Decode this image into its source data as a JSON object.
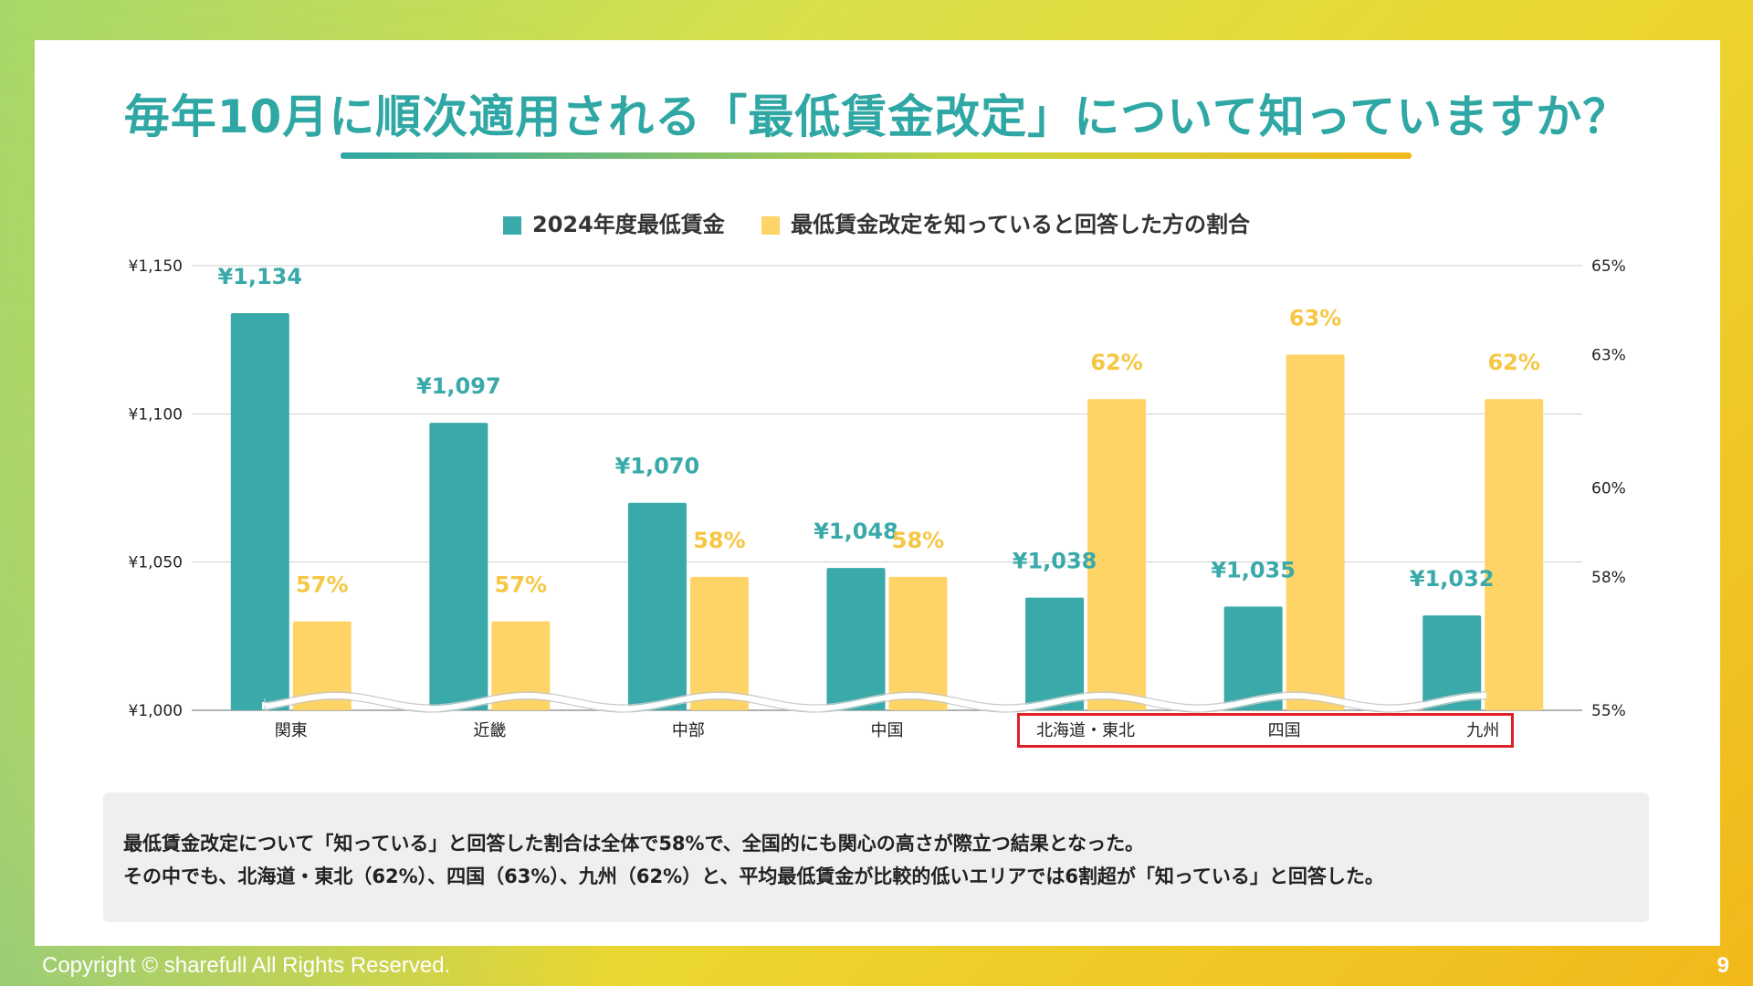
{
  "title": "毎年10月に順次適用される「最低賃金改定」について知っていますか？",
  "chart_data": {
    "type": "bar",
    "legend": [
      {
        "name": "2024年度最低賃金",
        "color": "#3aa9a9"
      },
      {
        "name": "最低賃金改定を知っていると回答した方の割合",
        "color": "#ffd466"
      }
    ],
    "categories": [
      "関東",
      "近畿",
      "中部",
      "中国",
      "北海道・東北",
      "四国",
      "九州"
    ],
    "series": [
      {
        "name": "2024年度最低賃金",
        "axis": "left",
        "color": "#3aa9a9",
        "values": [
          1134,
          1097,
          1070,
          1048,
          1038,
          1035,
          1032
        ],
        "labels": [
          "¥1,134",
          "¥1,097",
          "¥1,070",
          "¥1,048",
          "¥1,038",
          "¥1,035",
          "¥1,032"
        ]
      },
      {
        "name": "最低賃金改定を知っていると回答した方の割合",
        "axis": "right",
        "color": "#ffd466",
        "values": [
          57,
          57,
          58,
          58,
          62,
          63,
          62
        ],
        "labels": [
          "57%",
          "57%",
          "58%",
          "58%",
          "62%",
          "63%",
          "62%"
        ]
      }
    ],
    "y_left": {
      "min": 1000,
      "max": 1150,
      "ticks": [
        1000,
        1050,
        1100,
        1150
      ],
      "tick_labels": [
        "¥1,000",
        "¥1,050",
        "¥1,100",
        "¥1,150"
      ]
    },
    "y_right": {
      "min": 55,
      "max": 65,
      "ticks": [
        55,
        58,
        60,
        63,
        65
      ],
      "tick_labels": [
        "55%",
        "58%",
        "60%",
        "63%",
        "65%"
      ]
    },
    "axis_break": true,
    "highlighted_categories": [
      "北海道・東北",
      "四国",
      "九州"
    ],
    "legend_position": "top"
  },
  "note": {
    "line1": "最低賃金改定について「知っている」と回答した割合は全体で58%で、全国的にも関心の高さが際立つ結果となった。",
    "line2": "その中でも、北海道・東北（62%）、四国（63%）、九州（62%）と、平均最低賃金が比較的低いエリアでは6割超が「知っている」と回答した。"
  },
  "footer": {
    "copyright": "Copyright © sharefull All Rights Reserved.",
    "page_number": "9"
  },
  "colors": {
    "accent": "#2fa7a4",
    "highlight_border": "#e01f26"
  }
}
